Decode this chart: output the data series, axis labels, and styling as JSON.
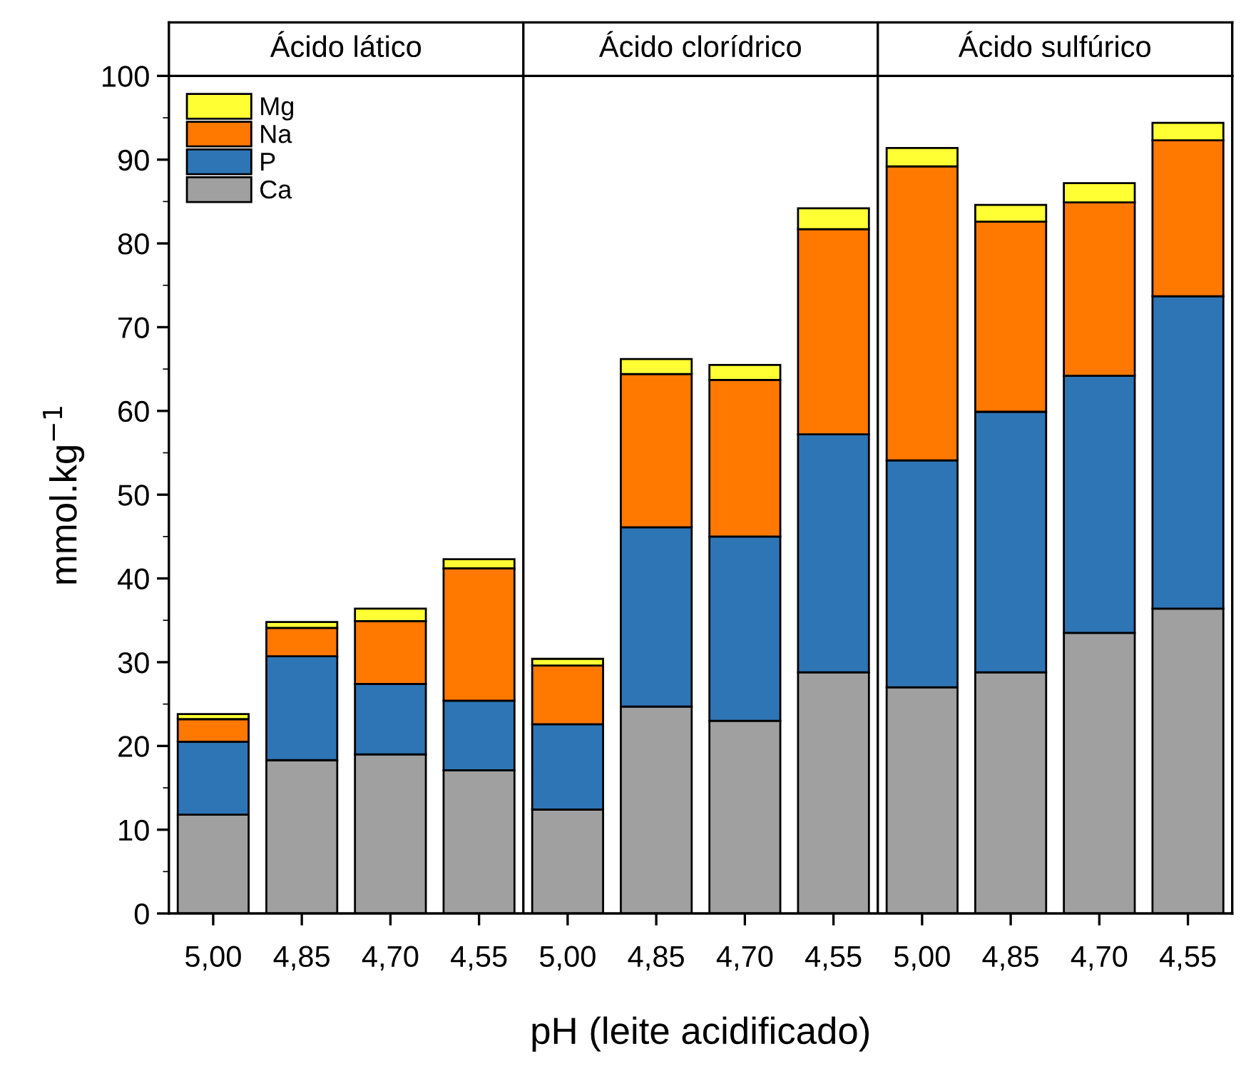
{
  "chart_data": {
    "type": "bar",
    "stacked": true,
    "categories": [
      "5,00",
      "4,85",
      "4,70",
      "4,55",
      "5,00",
      "4,85",
      "4,70",
      "4,55",
      "5,00",
      "4,85",
      "4,70",
      "4,55"
    ],
    "series": [
      {
        "name": "Ca",
        "color": "#a0a0a0",
        "values": [
          11.8,
          18.3,
          19.0,
          17.1,
          12.4,
          24.7,
          23.0,
          28.8,
          27.0,
          28.8,
          33.5,
          36.4
        ]
      },
      {
        "name": "P",
        "color": "#2e75b6",
        "values": [
          8.7,
          12.4,
          8.4,
          8.3,
          10.2,
          21.4,
          22.0,
          28.4,
          27.1,
          31.1,
          30.7,
          37.3
        ]
      },
      {
        "name": "Na",
        "color": "#ff7800",
        "values": [
          2.7,
          3.4,
          7.5,
          15.8,
          7.0,
          18.3,
          18.7,
          24.5,
          35.1,
          22.7,
          20.7,
          18.6
        ]
      },
      {
        "name": "Mg",
        "color": "#ffff33",
        "values": [
          0.6,
          0.7,
          1.5,
          1.1,
          0.8,
          1.8,
          1.8,
          2.5,
          2.2,
          2.0,
          2.3,
          2.1
        ]
      }
    ],
    "annotations": [
      "Ácido lático",
      "Ácido clorídrico",
      "Ácido sulfúrico"
    ],
    "xlabel": "pH (leite acidificado)",
    "ylabel": "mmol.kg$^{−1}$",
    "ylim": [
      0,
      100
    ],
    "yticks": [
      0,
      10,
      20,
      30,
      40,
      50,
      60,
      70,
      80,
      90,
      100
    ],
    "legend": "top left",
    "grid": false
  }
}
